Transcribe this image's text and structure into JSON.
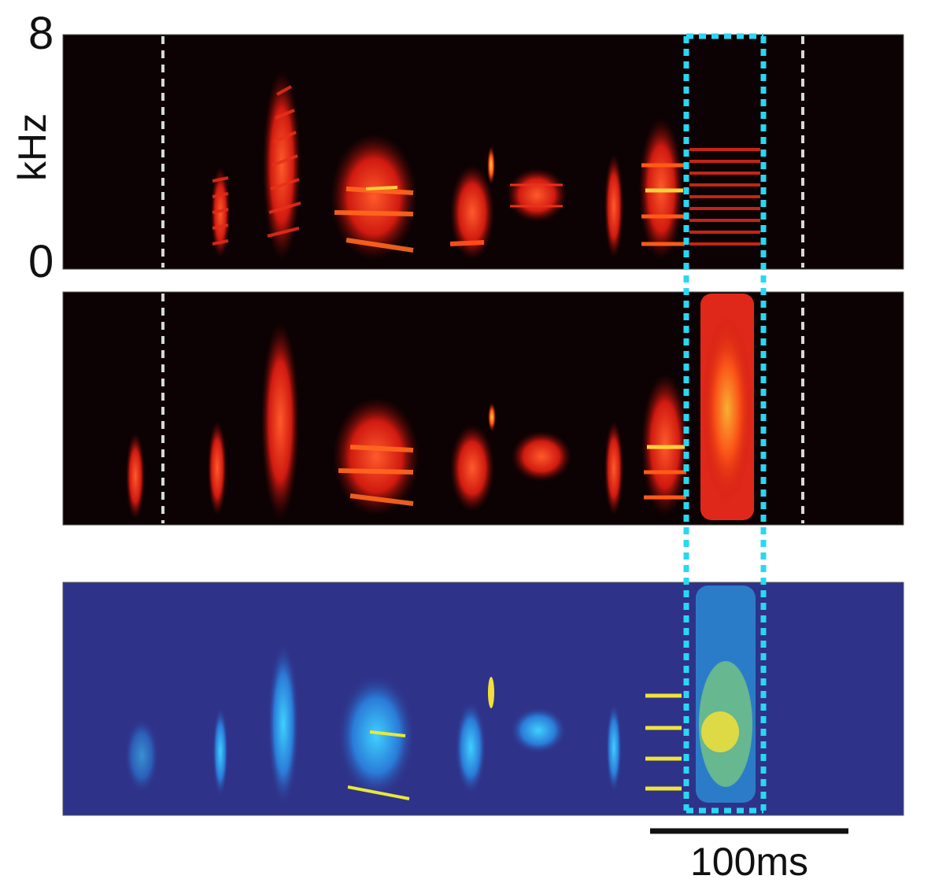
{
  "axis": {
    "ylabel": "kHz",
    "y_max_label": "8",
    "y_min_label": "0",
    "yrange_khz": [
      0,
      8
    ]
  },
  "panels": [
    {
      "name": "spectrogram-top",
      "colormap": "hot"
    },
    {
      "name": "spectrogram-middle",
      "colormap": "hot"
    },
    {
      "name": "spectrogram-bottom",
      "colormap": "parula"
    }
  ],
  "scale_bar": {
    "label": "100ms",
    "duration_ms": 100
  },
  "colors": {
    "hot_background": "#0d0203",
    "parula_background": "#2f3289",
    "highlight_box": "#2ad7f2",
    "marker_lines": "#d8d8d8"
  }
}
